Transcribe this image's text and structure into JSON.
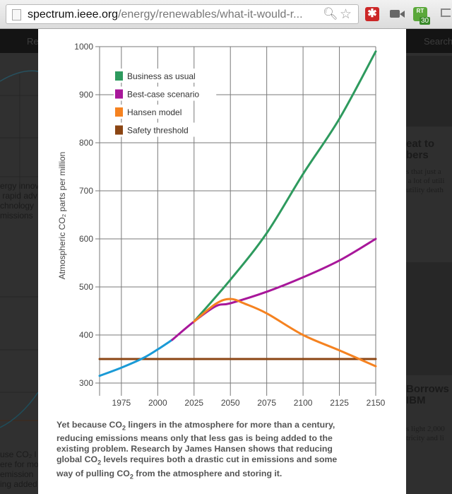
{
  "browser": {
    "url_host": "spectrum.ieee.org",
    "url_path": "/energy/renewables/what-it-would-r...",
    "icons": [
      "page-icon",
      "zoom-icon",
      "bookmark-star-icon",
      "lastpass-extension-icon",
      "camera-extension-icon",
      "rt-extension-icon",
      "cast-icon"
    ],
    "rt_badge_label": "RT",
    "rt_badge_count": "30"
  },
  "background_page": {
    "left_nav_text": "Re",
    "right_nav_text": "Search",
    "left_text_lines": [
      "ergy innov",
      " rapid adv",
      "chnology",
      "missions"
    ],
    "left_bottom_lines": [
      "use CO₂ l",
      "ere for mo",
      "emission",
      "ing added"
    ],
    "right_headline_1": [
      "eat to",
      "bers"
    ],
    "right_snippet_1": [
      "s that just a",
      " a lot of utili",
      "utility death"
    ],
    "right_headline_2": [
      "Borrows",
      "IBM"
    ],
    "right_snippet_2": [
      "s light 2,000",
      "tricity and li"
    ]
  },
  "colors": {
    "business_as_usual": "#2e9a5e",
    "best_case": "#a8179a",
    "hansen": "#f58220",
    "safety_threshold": "#8b4513",
    "historical": "#1a9ad6",
    "grid": "#7a7a7a"
  },
  "chart_data": {
    "type": "line",
    "title": "",
    "xlabel": "",
    "ylabel": "Atmospheric CO₂ parts per million",
    "xlim": [
      1960,
      2150
    ],
    "ylim": [
      300,
      1000
    ],
    "x_ticks": [
      "1975",
      "2000",
      "2025",
      "2050",
      "2075",
      "2100",
      "2125",
      "2150"
    ],
    "y_ticks": [
      "300",
      "400",
      "500",
      "600",
      "700",
      "800",
      "900",
      "1000"
    ],
    "grid": true,
    "legend_position": "upper-left",
    "legend": [
      "Business as usual",
      "Best-case scenario",
      "Hansen model",
      "Safety threshold"
    ],
    "series": [
      {
        "name": "Historical",
        "color": "#1a9ad6",
        "x": [
          1960,
          1975,
          1990,
          2000,
          2010
        ],
        "y": [
          315,
          332,
          352,
          370,
          390
        ]
      },
      {
        "name": "Business as usual",
        "color": "#2e9a5e",
        "x": [
          2025,
          2050,
          2075,
          2100,
          2125,
          2150
        ],
        "y": [
          428,
          515,
          612,
          735,
          850,
          990
        ]
      },
      {
        "name": "Best-case scenario",
        "color": "#a8179a",
        "x": [
          2010,
          2025,
          2040,
          2050,
          2075,
          2100,
          2125,
          2150
        ],
        "y": [
          390,
          428,
          460,
          466,
          490,
          520,
          555,
          600
        ]
      },
      {
        "name": "Hansen model",
        "color": "#f58220",
        "x": [
          2025,
          2040,
          2050,
          2060,
          2075,
          2100,
          2125,
          2150
        ],
        "y": [
          428,
          465,
          475,
          465,
          445,
          400,
          368,
          335
        ]
      },
      {
        "name": "Safety threshold",
        "color": "#8b4513",
        "x": [
          1960,
          2150
        ],
        "y": [
          350,
          350
        ]
      }
    ]
  },
  "caption": {
    "line1_a": "Yet because CO",
    "line1_b": " lingers in the atmosphere for more than a century,",
    "line2": "reducing emissions means only that less gas is being added to the",
    "line3": "existing problem. Research by James Hansen shows that reducing",
    "line4_a": "global CO",
    "line4_b": " levels requires both a drastic cut in emissions and some",
    "line5_a": "way of pulling CO",
    "line5_b": " from the atmosphere and storing it.",
    "subscript": "2"
  }
}
